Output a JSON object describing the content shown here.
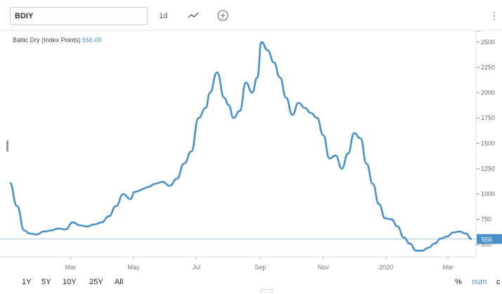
{
  "toolbar": {
    "symbol": "BDIY",
    "interval": "1d",
    "icons": [
      "line-chart-icon",
      "add-circle-icon",
      "more-vertical-icon"
    ]
  },
  "legend": {
    "name": "Baltic Dry (Index Points)",
    "value": "556.00"
  },
  "range_buttons": [
    "1Y",
    "5Y",
    "10Y",
    "25Y",
    "All"
  ],
  "display_modes": {
    "percent": "%",
    "numeric": "num",
    "cut": "c"
  },
  "colors": {
    "line": "#4a90c9",
    "price_line": "#a9cce3",
    "badge_bg": "#4a90c9",
    "grid": "#e8e8e8"
  },
  "chart_data": {
    "type": "line",
    "title": "",
    "xlabel": "",
    "ylabel": "",
    "ylim": [
      380,
      2610
    ],
    "yticks": [
      500,
      750,
      1000,
      1250,
      1500,
      1750,
      2000,
      2250,
      2500
    ],
    "ytick_labels": [
      "500",
      "750",
      "1000",
      "1250",
      "1500",
      "1750",
      "2000",
      "2250",
      "2500"
    ],
    "xtick_labels": [
      "Mar",
      "May",
      "Jul",
      "Sep",
      "Nov",
      "2020",
      "Mar"
    ],
    "xtick_dates": [
      "2019-03-01",
      "2019-05-01",
      "2019-07-01",
      "2019-09-01",
      "2019-11-01",
      "2020-01-01",
      "2020-03-01"
    ],
    "current_value_label": "556",
    "current_value": 556,
    "series": [
      {
        "x": [
          "2019-01-01",
          "2019-01-08",
          "2019-01-15",
          "2019-01-20",
          "2019-01-27",
          "2019-02-03",
          "2019-02-10",
          "2019-02-17",
          "2019-02-24",
          "2019-03-03",
          "2019-03-10",
          "2019-03-17",
          "2019-03-24",
          "2019-03-31",
          "2019-04-07",
          "2019-04-14",
          "2019-04-21",
          "2019-04-28",
          "2019-05-02",
          "2019-05-06",
          "2019-05-10",
          "2019-05-15",
          "2019-05-22",
          "2019-05-29",
          "2019-06-05",
          "2019-06-12",
          "2019-06-19",
          "2019-06-26",
          "2019-07-03",
          "2019-07-10",
          "2019-07-14",
          "2019-07-21",
          "2019-07-28",
          "2019-08-01",
          "2019-08-06",
          "2019-08-12",
          "2019-08-18",
          "2019-08-24",
          "2019-08-29",
          "2019-09-02",
          "2019-09-08",
          "2019-09-14",
          "2019-09-20",
          "2019-09-26",
          "2019-10-02",
          "2019-10-08",
          "2019-10-14",
          "2019-10-20",
          "2019-10-26",
          "2019-11-01",
          "2019-11-07",
          "2019-11-13",
          "2019-11-19",
          "2019-11-25",
          "2019-12-01",
          "2019-12-07",
          "2019-12-13",
          "2019-12-19",
          "2019-12-25",
          "2019-12-31",
          "2020-01-06",
          "2020-01-12",
          "2020-01-18",
          "2020-01-24",
          "2020-01-30",
          "2020-02-05",
          "2020-02-11",
          "2020-02-17",
          "2020-02-23",
          "2020-02-29",
          "2020-03-06",
          "2020-03-12",
          "2020-03-18",
          "2020-03-24"
        ],
        "y": [
          1110,
          880,
          640,
          610,
          600,
          630,
          640,
          660,
          650,
          720,
          690,
          680,
          700,
          720,
          780,
          880,
          1000,
          950,
          1020,
          1030,
          1050,
          1070,
          1100,
          1120,
          1080,
          1150,
          1300,
          1420,
          1750,
          1850,
          2000,
          2200,
          1950,
          1880,
          1750,
          1820,
          2100,
          2000,
          2150,
          2500,
          2420,
          2300,
          2150,
          1950,
          1780,
          1900,
          1850,
          1800,
          1750,
          1580,
          1350,
          1380,
          1250,
          1400,
          1600,
          1550,
          1300,
          1100,
          900,
          760,
          750,
          680,
          570,
          510,
          440,
          440,
          470,
          510,
          560,
          580,
          620,
          630,
          610,
          556
        ]
      }
    ]
  }
}
